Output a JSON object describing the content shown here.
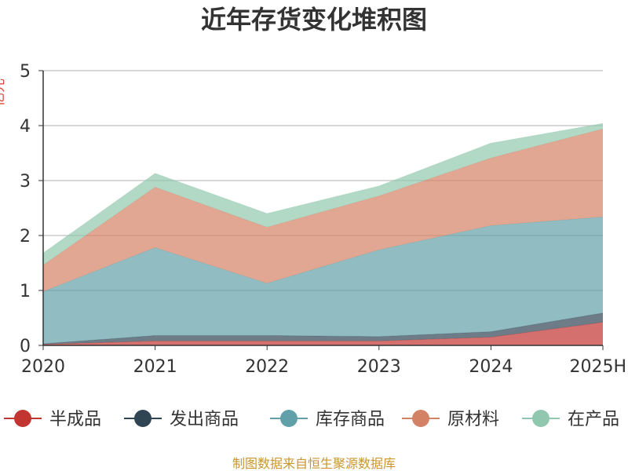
{
  "chart_data": {
    "type": "area",
    "stacked": true,
    "title": "近年存货变化堆积图",
    "ylabel": "亿元",
    "categories": [
      "2020",
      "2021",
      "2022",
      "2023",
      "2024",
      "2025H"
    ],
    "ylim": [
      0,
      5
    ],
    "yticks": [
      0,
      1,
      2,
      3,
      4,
      5
    ],
    "grid": true,
    "legend_position": "bottom",
    "series": [
      {
        "name": "半成品",
        "color": "#c23531",
        "values": [
          0.02,
          0.08,
          0.08,
          0.08,
          0.15,
          0.42
        ]
      },
      {
        "name": "发出商品",
        "color": "#2f4554",
        "values": [
          0.01,
          0.1,
          0.1,
          0.08,
          0.1,
          0.17
        ]
      },
      {
        "name": "库存商品",
        "color": "#61a0a8",
        "values": [
          0.95,
          1.6,
          0.95,
          1.58,
          1.93,
          1.75
        ]
      },
      {
        "name": "原材料",
        "color": "#d48265",
        "values": [
          0.48,
          1.1,
          1.02,
          0.98,
          1.23,
          1.6
        ]
      },
      {
        "name": "在产品",
        "color": "#91c7ae",
        "values": [
          0.22,
          0.25,
          0.25,
          0.18,
          0.27,
          0.1
        ]
      }
    ],
    "source": "制图数据来自恒生聚源数据库"
  }
}
